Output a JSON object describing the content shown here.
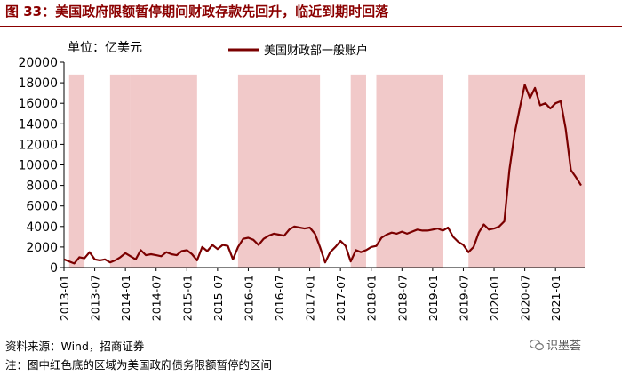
{
  "figure": {
    "title": "图 33：美国政府限额暂停期间财政存款先回升，临近到期时回落",
    "source": "资料来源：Wind，招商证券",
    "note": "注：图中红色底的区域为美国政府债务限额暂停的区间",
    "watermark": "识墨荟"
  },
  "chart_data": {
    "type": "line",
    "unit_label": "单位：亿美元",
    "ylim": [
      0,
      20000
    ],
    "y_ticks": [
      0,
      2000,
      4000,
      6000,
      8000,
      10000,
      12000,
      14000,
      16000,
      18000,
      20000
    ],
    "y_tick_labels": [
      "0",
      "2000",
      "4000",
      "6000",
      "8000",
      "10000",
      "12000",
      "14000",
      "16000",
      "18000",
      "20000"
    ],
    "x_range": [
      "2013-01",
      "2021-06"
    ],
    "x_tick_labels": [
      "2013-01",
      "2013-07",
      "2014-01",
      "2014-07",
      "2015-01",
      "2015-07",
      "2016-01",
      "2016-07",
      "2017-01",
      "2017-07",
      "2018-01",
      "2018-07",
      "2019-01",
      "2019-07",
      "2020-01",
      "2020-07",
      "2021-01"
    ],
    "legend": {
      "position": "top-center",
      "entries": [
        "美国财政部一般账户"
      ]
    },
    "grid": false,
    "colors": {
      "line": "#7b0000",
      "shade": "#f1c9c9",
      "title": "#8b0000"
    },
    "shaded_periods": [
      [
        "2013-02",
        "2013-05"
      ],
      [
        "2013-10",
        "2014-02"
      ],
      [
        "2014-02",
        "2015-03"
      ],
      [
        "2015-11",
        "2017-03"
      ],
      [
        "2017-09",
        "2017-12"
      ],
      [
        "2018-02",
        "2019-03"
      ],
      [
        "2019-08",
        "2021-07"
      ]
    ],
    "series": [
      {
        "name": "美国财政部一般账户",
        "points": [
          [
            "2013-01",
            800
          ],
          [
            "2013-02",
            600
          ],
          [
            "2013-03",
            400
          ],
          [
            "2013-04",
            1000
          ],
          [
            "2013-05",
            900
          ],
          [
            "2013-06",
            1500
          ],
          [
            "2013-07",
            800
          ],
          [
            "2013-08",
            700
          ],
          [
            "2013-09",
            800
          ],
          [
            "2013-10",
            500
          ],
          [
            "2013-11",
            700
          ],
          [
            "2013-12",
            1000
          ],
          [
            "2014-01",
            1400
          ],
          [
            "2014-02",
            1100
          ],
          [
            "2014-03",
            800
          ],
          [
            "2014-04",
            1700
          ],
          [
            "2014-05",
            1200
          ],
          [
            "2014-06",
            1300
          ],
          [
            "2014-07",
            1200
          ],
          [
            "2014-08",
            1100
          ],
          [
            "2014-09",
            1500
          ],
          [
            "2014-10",
            1300
          ],
          [
            "2014-11",
            1200
          ],
          [
            "2014-12",
            1600
          ],
          [
            "2015-01",
            1700
          ],
          [
            "2015-02",
            1300
          ],
          [
            "2015-03",
            700
          ],
          [
            "2015-04",
            2000
          ],
          [
            "2015-05",
            1600
          ],
          [
            "2015-06",
            2200
          ],
          [
            "2015-07",
            1800
          ],
          [
            "2015-08",
            2200
          ],
          [
            "2015-09",
            2100
          ],
          [
            "2015-10",
            800
          ],
          [
            "2015-11",
            2000
          ],
          [
            "2015-12",
            2800
          ],
          [
            "2016-01",
            2900
          ],
          [
            "2016-02",
            2700
          ],
          [
            "2016-03",
            2200
          ],
          [
            "2016-04",
            2800
          ],
          [
            "2016-05",
            3100
          ],
          [
            "2016-06",
            3300
          ],
          [
            "2016-07",
            3200
          ],
          [
            "2016-08",
            3100
          ],
          [
            "2016-09",
            3700
          ],
          [
            "2016-10",
            4000
          ],
          [
            "2016-11",
            3900
          ],
          [
            "2016-12",
            3800
          ],
          [
            "2017-01",
            3900
          ],
          [
            "2017-02",
            3300
          ],
          [
            "2017-03",
            2000
          ],
          [
            "2017-04",
            500
          ],
          [
            "2017-05",
            1500
          ],
          [
            "2017-06",
            2000
          ],
          [
            "2017-07",
            2600
          ],
          [
            "2017-08",
            2100
          ],
          [
            "2017-09",
            600
          ],
          [
            "2017-10",
            1700
          ],
          [
            "2017-11",
            1500
          ],
          [
            "2017-12",
            1700
          ],
          [
            "2018-01",
            2000
          ],
          [
            "2018-02",
            2100
          ],
          [
            "2018-03",
            2900
          ],
          [
            "2018-04",
            3200
          ],
          [
            "2018-05",
            3400
          ],
          [
            "2018-06",
            3300
          ],
          [
            "2018-07",
            3500
          ],
          [
            "2018-08",
            3300
          ],
          [
            "2018-09",
            3500
          ],
          [
            "2018-10",
            3700
          ],
          [
            "2018-11",
            3600
          ],
          [
            "2018-12",
            3600
          ],
          [
            "2019-01",
            3700
          ],
          [
            "2019-02",
            3800
          ],
          [
            "2019-03",
            3600
          ],
          [
            "2019-04",
            3900
          ],
          [
            "2019-05",
            3000
          ],
          [
            "2019-06",
            2500
          ],
          [
            "2019-07",
            2200
          ],
          [
            "2019-08",
            1500
          ],
          [
            "2019-09",
            2000
          ],
          [
            "2019-10",
            3400
          ],
          [
            "2019-11",
            4200
          ],
          [
            "2019-12",
            3700
          ],
          [
            "2020-01",
            3800
          ],
          [
            "2020-02",
            4000
          ],
          [
            "2020-03",
            4500
          ],
          [
            "2020-04",
            9500
          ],
          [
            "2020-05",
            13000
          ],
          [
            "2020-06",
            15500
          ],
          [
            "2020-07",
            17800
          ],
          [
            "2020-08",
            16500
          ],
          [
            "2020-09",
            17500
          ],
          [
            "2020-10",
            15800
          ],
          [
            "2020-11",
            16000
          ],
          [
            "2020-12",
            15500
          ],
          [
            "2021-01",
            16000
          ],
          [
            "2021-02",
            16200
          ],
          [
            "2021-03",
            13500
          ],
          [
            "2021-04",
            9500
          ],
          [
            "2021-05",
            8800
          ],
          [
            "2021-06",
            8000
          ]
        ]
      }
    ]
  }
}
